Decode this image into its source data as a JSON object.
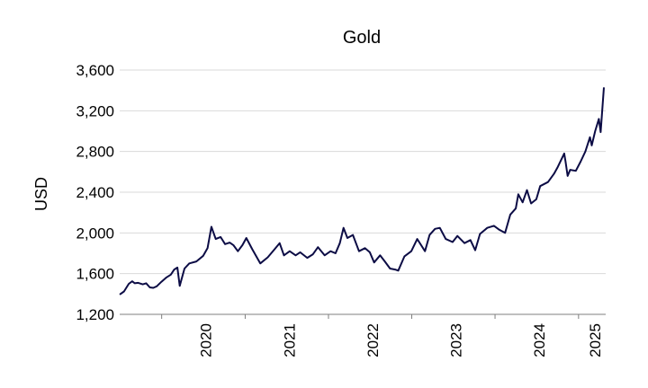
{
  "chart_data": {
    "type": "line",
    "title": "Gold",
    "ylabel": "USD",
    "xlabel": "",
    "ylim": [
      1200,
      3600
    ],
    "yticks": [
      1200,
      1600,
      2000,
      2400,
      2800,
      3200,
      3600
    ],
    "ytick_labels": [
      "1,200",
      "1,600",
      "2,000",
      "2,400",
      "2,800",
      "3,200",
      "3,600"
    ],
    "xlim": [
      "2019-07-01",
      "2025-04-30"
    ],
    "xtick_labels": [
      "2020",
      "2021",
      "2022",
      "2023",
      "2024",
      "2025"
    ],
    "xtick_positions": [
      "2020-01-01",
      "2021-01-01",
      "2022-01-01",
      "2023-01-01",
      "2024-01-01",
      "2025-01-01"
    ],
    "grid": true,
    "legend": "none",
    "colors": {
      "series": "#0c0c45",
      "grid": "#d9d9d9",
      "axis": "#7f7f7f"
    },
    "series": [
      {
        "name": "",
        "x": [
          "2019-07-01",
          "2019-07-20",
          "2019-08-10",
          "2019-08-25",
          "2019-09-05",
          "2019-09-20",
          "2019-10-10",
          "2019-10-25",
          "2019-11-10",
          "2019-11-25",
          "2019-12-10",
          "2019-12-31",
          "2020-01-20",
          "2020-02-10",
          "2020-02-25",
          "2020-03-10",
          "2020-03-20",
          "2020-04-10",
          "2020-05-01",
          "2020-06-01",
          "2020-07-01",
          "2020-07-20",
          "2020-08-06",
          "2020-08-25",
          "2020-09-15",
          "2020-10-05",
          "2020-10-25",
          "2020-11-10",
          "2020-11-30",
          "2020-12-20",
          "2021-01-06",
          "2021-02-01",
          "2021-03-08",
          "2021-04-10",
          "2021-05-10",
          "2021-06-01",
          "2021-06-20",
          "2021-07-15",
          "2021-08-10",
          "2021-08-30",
          "2021-09-30",
          "2021-10-25",
          "2021-11-16",
          "2021-12-15",
          "2022-01-10",
          "2022-02-01",
          "2022-02-20",
          "2022-03-08",
          "2022-03-25",
          "2022-04-18",
          "2022-05-15",
          "2022-06-10",
          "2022-07-01",
          "2022-07-20",
          "2022-08-15",
          "2022-09-05",
          "2022-09-28",
          "2022-10-20",
          "2022-11-03",
          "2022-11-30",
          "2022-12-30",
          "2023-01-25",
          "2023-02-28",
          "2023-03-20",
          "2023-04-13",
          "2023-05-04",
          "2023-05-30",
          "2023-06-29",
          "2023-07-20",
          "2023-08-20",
          "2023-09-15",
          "2023-10-06",
          "2023-10-27",
          "2023-11-28",
          "2023-12-27",
          "2024-01-20",
          "2024-02-14",
          "2024-03-08",
          "2024-04-01",
          "2024-04-12",
          "2024-05-01",
          "2024-05-20",
          "2024-06-07",
          "2024-06-30",
          "2024-07-17",
          "2024-08-20",
          "2024-09-15",
          "2024-09-30",
          "2024-10-30",
          "2024-11-05",
          "2024-11-14",
          "2024-11-25",
          "2024-12-20",
          "2025-01-10",
          "2025-01-31",
          "2025-02-20",
          "2025-02-28",
          "2025-03-15",
          "2025-03-31",
          "2025-04-08",
          "2025-04-22"
        ],
        "y": [
          1395,
          1425,
          1500,
          1525,
          1505,
          1510,
          1495,
          1505,
          1465,
          1460,
          1475,
          1520,
          1560,
          1590,
          1640,
          1660,
          1480,
          1650,
          1700,
          1720,
          1775,
          1850,
          2060,
          1940,
          1960,
          1890,
          1905,
          1880,
          1820,
          1880,
          1950,
          1840,
          1700,
          1760,
          1840,
          1900,
          1780,
          1820,
          1780,
          1810,
          1755,
          1790,
          1860,
          1780,
          1820,
          1800,
          1900,
          2050,
          1950,
          1980,
          1820,
          1850,
          1810,
          1710,
          1780,
          1720,
          1650,
          1640,
          1630,
          1770,
          1820,
          1940,
          1820,
          1980,
          2040,
          2050,
          1940,
          1910,
          1970,
          1900,
          1930,
          1830,
          1990,
          2050,
          2070,
          2030,
          2000,
          2180,
          2240,
          2380,
          2300,
          2420,
          2290,
          2330,
          2460,
          2500,
          2580,
          2640,
          2780,
          2700,
          2560,
          2620,
          2610,
          2700,
          2800,
          2940,
          2860,
          3000,
          3120,
          2990,
          3430
        ]
      }
    ]
  }
}
